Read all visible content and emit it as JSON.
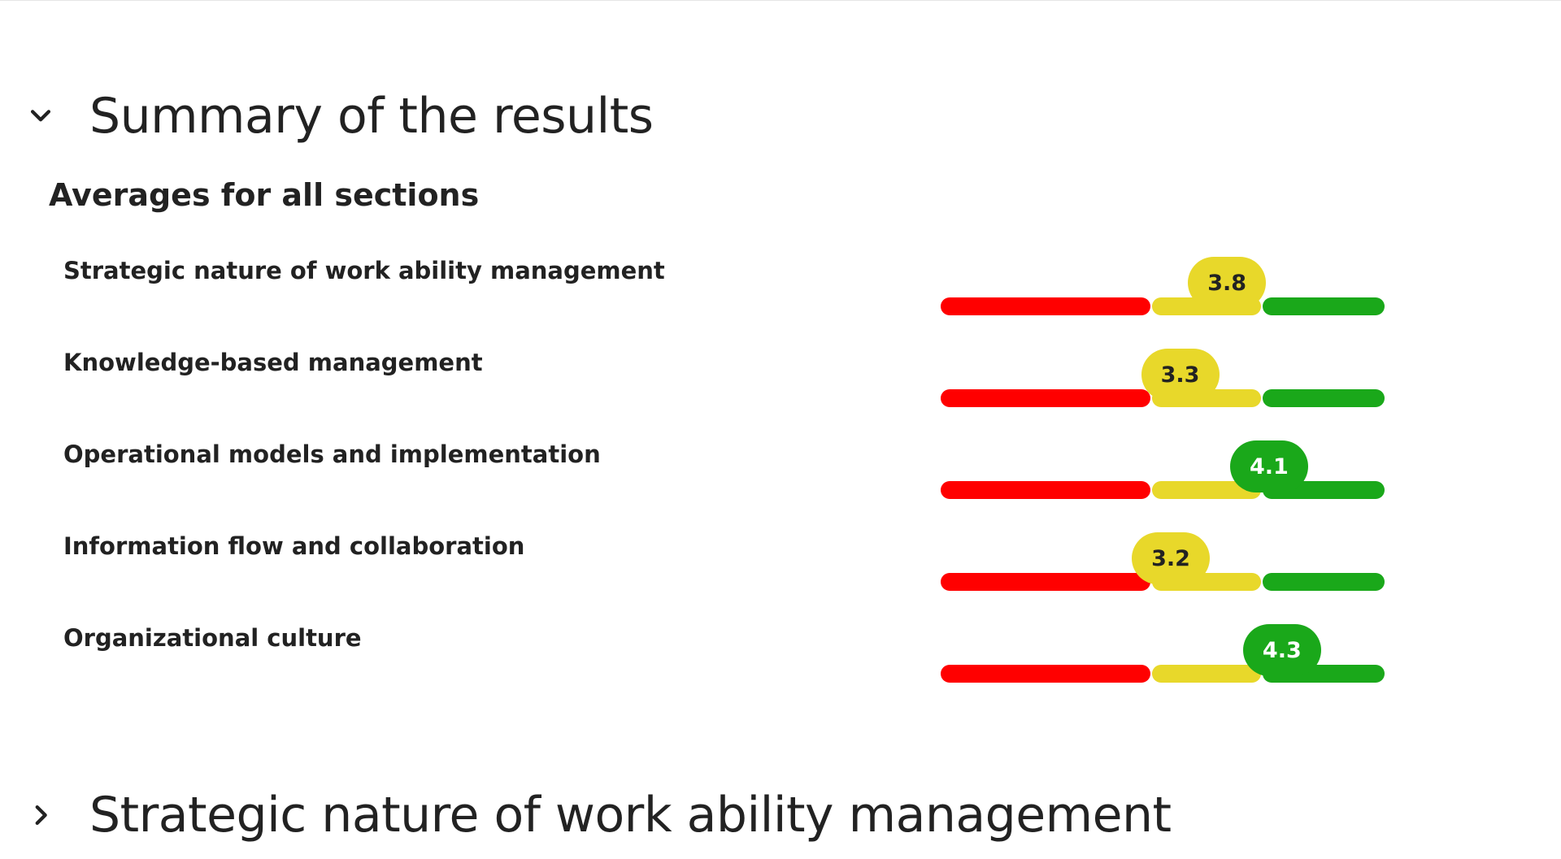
{
  "colors": {
    "red": "#ff0000",
    "yellow": "#e8d82a",
    "green": "#1aa81a",
    "text": "#222222"
  },
  "summary_section": {
    "title": "Summary of the results",
    "expanded": true,
    "chevron_icon": "chevron-down-icon",
    "subheading": "Averages for all sections",
    "scale_segments": [
      "red",
      "yellow",
      "green"
    ],
    "rows": [
      {
        "label": "Strategic nature of work ability management",
        "value": "3.8",
        "score": 3.8,
        "level": "yellow"
      },
      {
        "label": "Knowledge-based management",
        "value": "3.3",
        "score": 3.3,
        "level": "yellow"
      },
      {
        "label": "Operational models and implementation",
        "value": "4.1",
        "score": 4.1,
        "level": "green"
      },
      {
        "label": "Information flow and collaboration",
        "value": "3.2",
        "score": 3.2,
        "level": "yellow"
      },
      {
        "label": "Organizational culture",
        "value": "4.3",
        "score": 4.3,
        "level": "green"
      }
    ]
  },
  "strategic_section": {
    "title": "Strategic nature of work ability management",
    "expanded": false,
    "chevron_icon": "chevron-right-icon"
  }
}
